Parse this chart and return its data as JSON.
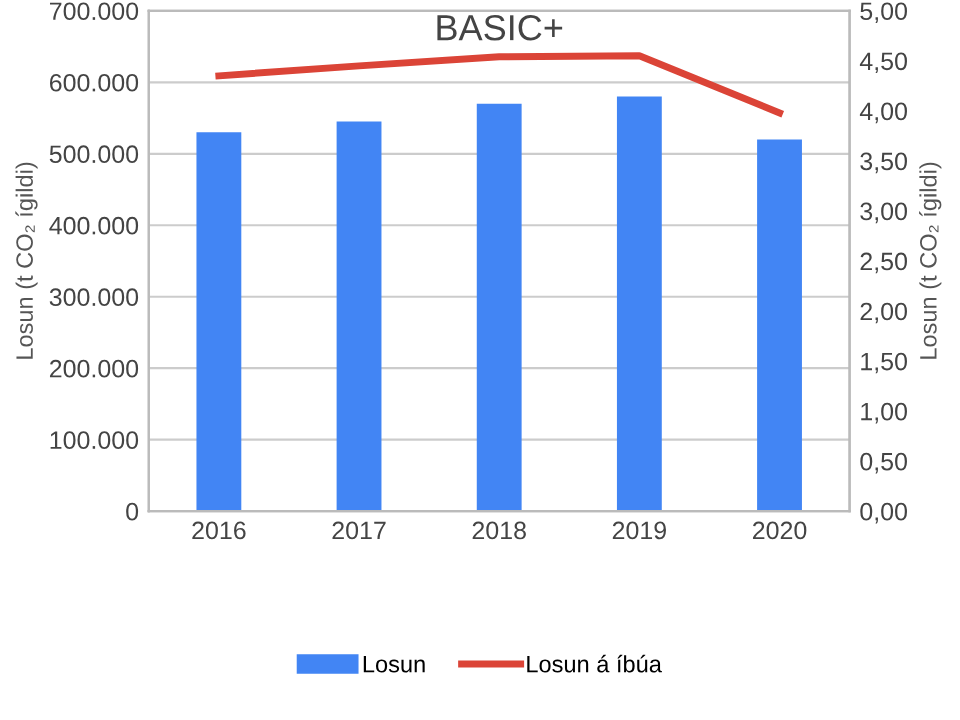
{
  "chart_data": {
    "type": "bar",
    "title": "BASIC+",
    "categories": [
      "2016",
      "2017",
      "2018",
      "2019",
      "2020"
    ],
    "series": [
      {
        "name": "Losun",
        "color": "#4285f4",
        "values": [
          530000,
          545000,
          570000,
          580000,
          520000
        ]
      },
      {
        "name": "Losun á íbúa",
        "type": "line",
        "axis": "y2",
        "color": "#db4437",
        "values": [
          4.35,
          4.45,
          4.54,
          4.55,
          3.98
        ]
      }
    ],
    "ylabel": "Losun (t CO₂ ígildi)",
    "y2label": "Losun (t CO₂ ígildi)",
    "ylim": [
      0,
      700000
    ],
    "yticks": [
      0,
      {
        "value": 100000,
        "label": "100.000"
      },
      {
        "value": 200000,
        "label": "200.000"
      },
      {
        "value": 300000,
        "label": "300.000"
      },
      {
        "value": 400000,
        "label": "400.000"
      },
      {
        "value": 500000,
        "label": "500.000"
      },
      {
        "value": 600000,
        "label": "600.000"
      },
      {
        "value": 700000,
        "label": "700.000"
      }
    ],
    "y2lim": [
      0,
      5
    ],
    "y2ticks": [
      {
        "value": 0,
        "label": "0,00"
      },
      {
        "value": 0.5,
        "label": "0,50"
      },
      {
        "value": 1,
        "label": "1,00"
      },
      {
        "value": 1.5,
        "label": "1,50"
      },
      {
        "value": 2,
        "label": "2,00"
      },
      {
        "value": 2.5,
        "label": "2,50"
      },
      {
        "value": 3,
        "label": "3,00"
      },
      {
        "value": 3.5,
        "label": "3,50"
      },
      {
        "value": 4,
        "label": "4,00"
      },
      {
        "value": 4.5,
        "label": "4,50"
      },
      {
        "value": 5,
        "label": "5,00"
      }
    ],
    "grid": "y",
    "legend": "bottom",
    "marker": "none",
    "line_style": "solid"
  }
}
